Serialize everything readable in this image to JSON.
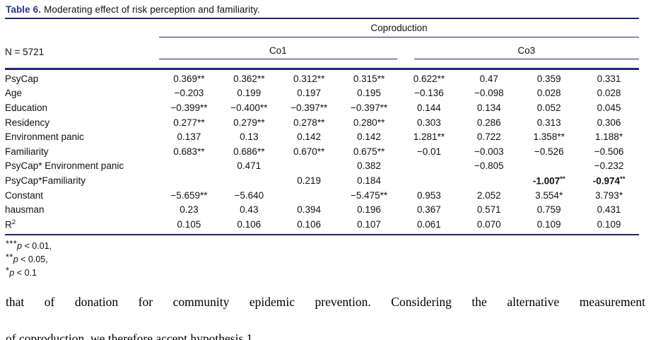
{
  "title": {
    "label": "Table 6.",
    "text": "Moderating effect of risk perception and familiarity."
  },
  "header": {
    "n_label": "N = 5721",
    "group_label": "Coproduction",
    "sub_groups": [
      "Co1",
      "Co3"
    ]
  },
  "table": {
    "rows": [
      {
        "label": "PsyCap",
        "cells": [
          "0.369**",
          "0.362**",
          "0.312**",
          "0.315**",
          "0.622**",
          "0.47",
          "0.359",
          "0.331"
        ]
      },
      {
        "label": "Age",
        "cells": [
          "−0.203",
          "0.199",
          "0.197",
          "0.195",
          "−0.136",
          "−0.098",
          "0.028",
          "0.028"
        ]
      },
      {
        "label": "Education",
        "cells": [
          "−0.399**",
          "−0.400**",
          "−0.397**",
          "−0.397**",
          "0.144",
          "0.134",
          "0.052",
          "0.045"
        ]
      },
      {
        "label": "Residency",
        "cells": [
          "0.277**",
          "0.279**",
          "0.278**",
          "0.280**",
          "0.303",
          "0.286",
          "0.313",
          "0.306"
        ]
      },
      {
        "label": "Environment panic",
        "cells": [
          "0.137",
          "0.13",
          "0.142",
          "0.142",
          "1.281**",
          "0.722",
          "1.358**",
          "1.188*"
        ]
      },
      {
        "label": "Familiarity",
        "cells": [
          "0.683**",
          "0.686**",
          "0.670**",
          "0.675**",
          "−0.01",
          "−0.003",
          "−0.526",
          "−0.506"
        ]
      },
      {
        "label": "PsyCap* Environment panic",
        "cells": [
          "",
          "0.471",
          "",
          "0.382",
          "",
          "−0.805",
          "",
          "−0.232"
        ]
      },
      {
        "label": "PsyCap*Familiarity",
        "cells": [
          "",
          "",
          "0.219",
          "0.184",
          "",
          "",
          {
            "text": "-1.007",
            "sup": "**",
            "bold": true
          },
          {
            "text": "-0.974",
            "sup": "**",
            "bold": true
          }
        ]
      },
      {
        "label": "Constant",
        "cells": [
          "−5.659**",
          "−5.640",
          "",
          "−5.475**",
          "0.953",
          "2.052",
          "3.554*",
          "3.793*"
        ]
      },
      {
        "label": "hausman",
        "cells": [
          "0.23",
          "0.43",
          "0.394",
          "0.196",
          "0.367",
          "0.571",
          "0.759",
          "0.431"
        ]
      },
      {
        "label": "R",
        "label_sup": "2",
        "cells": [
          "0.105",
          "0.106",
          "0.106",
          "0.107",
          "0.061",
          "0.070",
          "0.109",
          "0.109"
        ]
      }
    ]
  },
  "footnotes": [
    {
      "stars": "***",
      "var": "p",
      "rest": " < 0.01,"
    },
    {
      "stars": "**",
      "var": "p",
      "rest": " < 0.05,"
    },
    {
      "stars": "*",
      "var": "p",
      "rest": " < 0.1"
    }
  ],
  "paragraph": {
    "line1": "that of donation for community epidemic prevention. Considering the alternative measurement",
    "line2": "of coproduction, we therefore accept hypothesis 1."
  },
  "colors": {
    "rule_navy": "#1e276f",
    "title_blue": "#24348f",
    "text_black": "#111111"
  }
}
